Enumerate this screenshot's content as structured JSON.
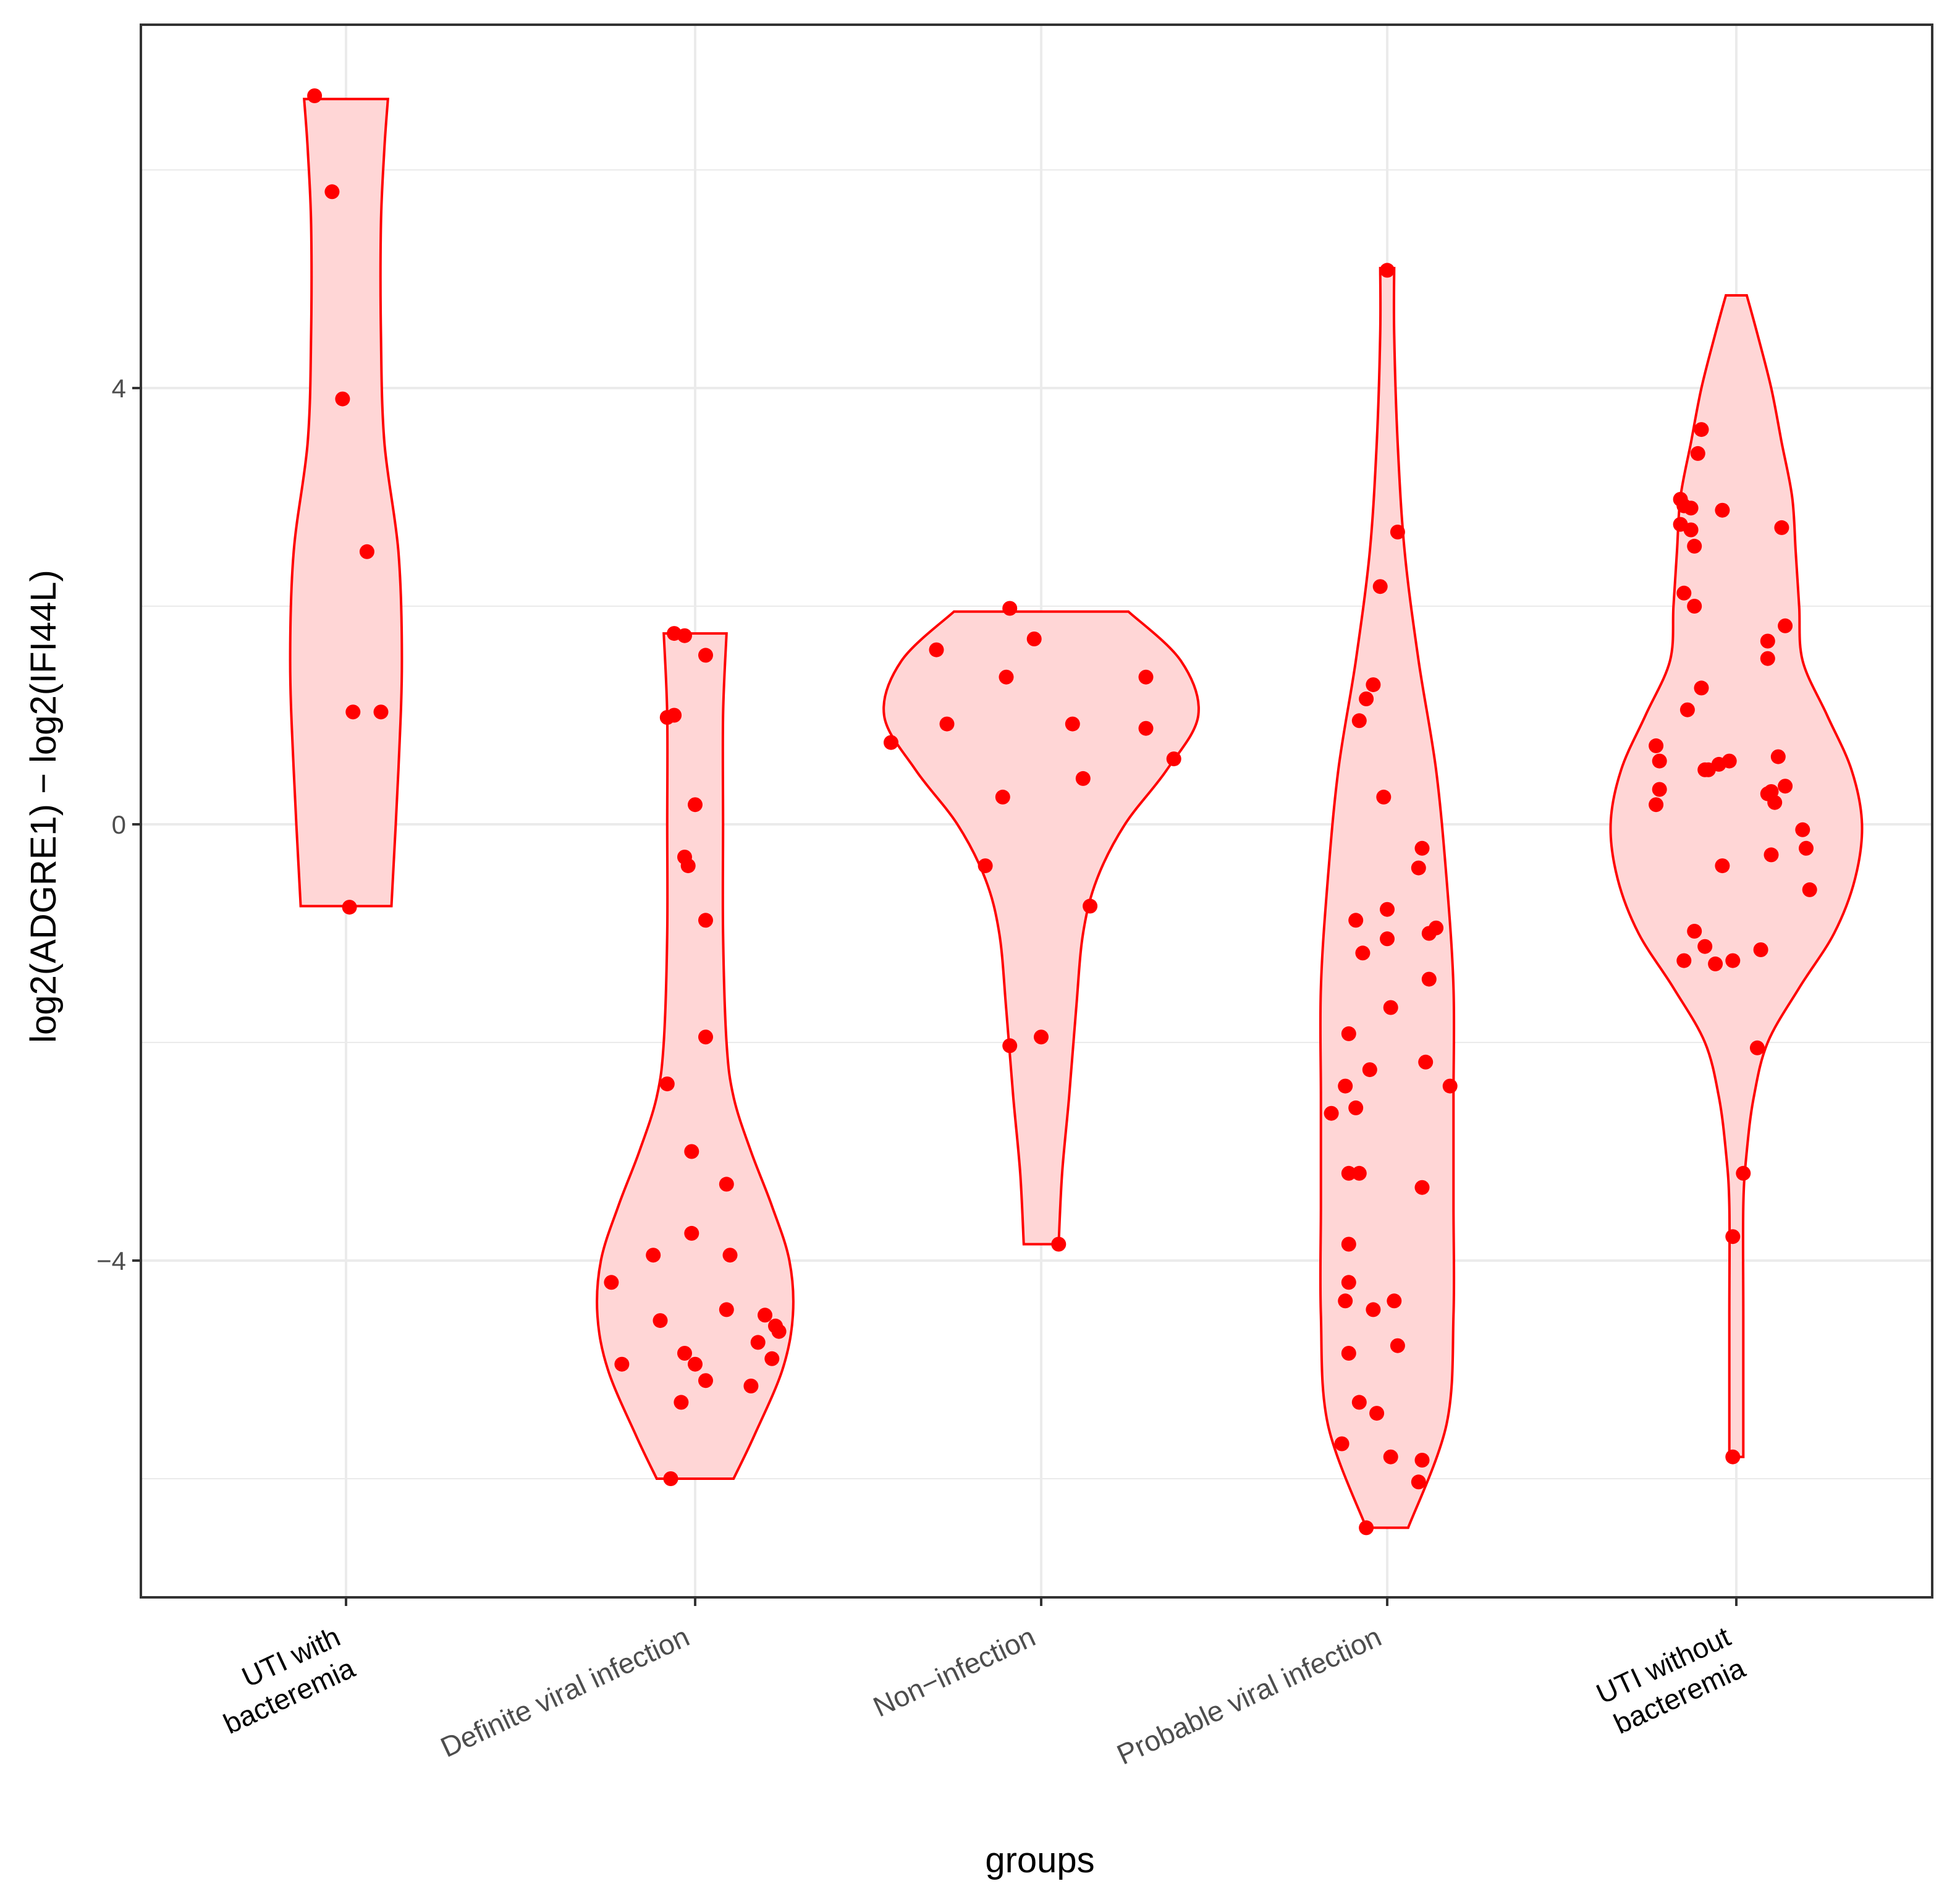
{
  "chart_data": {
    "type": "violin",
    "title": "",
    "xlabel": "groups",
    "ylabel": "log2(ADGRE1) − log2(IFI44L)",
    "ylim": [
      -7.1,
      7.3
    ],
    "yticks": [
      -4,
      0,
      4
    ],
    "ytick_labels": [
      "−4",
      "0",
      "4"
    ],
    "grid": true,
    "colors": {
      "fill": "#ffd6d6",
      "stroke": "#ff0000",
      "point": "#ff0000",
      "grid": "#ebebeb",
      "panel_border": "#333333"
    },
    "categories": [
      {
        "label_lines": [
          "UTI with",
          "bacteremia"
        ],
        "color": "#000000"
      },
      {
        "label_lines": [
          "Definite viral infection"
        ],
        "color": "#4d4d4d"
      },
      {
        "label_lines": [
          "Non−infection"
        ],
        "color": "#4d4d4d"
      },
      {
        "label_lines": [
          "Probable viral infection"
        ],
        "color": "#4d4d4d"
      },
      {
        "label_lines": [
          "UTI without",
          "bacteremia"
        ],
        "color": "#000000"
      }
    ],
    "groups": [
      {
        "violin": {
          "y": [
            -0.75,
            0.5,
            1.5,
            2.5,
            3.5,
            4.5,
            5.5,
            6.2,
            6.65
          ],
          "half_width": [
            0.13,
            0.15,
            0.16,
            0.15,
            0.11,
            0.1,
            0.1,
            0.11,
            0.12
          ]
        },
        "points": [
          [
            -0.09,
            6.68
          ],
          [
            -0.04,
            5.8
          ],
          [
            -0.01,
            3.9
          ],
          [
            0.06,
            2.5
          ],
          [
            0.02,
            1.03
          ],
          [
            0.1,
            1.03
          ],
          [
            0.01,
            -0.76
          ]
        ]
      },
      {
        "violin": {
          "y": [
            -6.0,
            -5.6,
            -5.0,
            -4.5,
            -4.0,
            -3.5,
            -3.0,
            -2.5,
            -2.0,
            -1.0,
            0.0,
            1.0,
            1.75
          ],
          "half_width": [
            0.11,
            0.17,
            0.25,
            0.28,
            0.27,
            0.22,
            0.16,
            0.11,
            0.09,
            0.08,
            0.08,
            0.08,
            0.09
          ]
        },
        "points": [
          [
            -0.07,
            -6.0
          ],
          [
            -0.06,
            1.75
          ],
          [
            -0.03,
            1.73
          ],
          [
            0.03,
            1.55
          ],
          [
            -0.08,
            0.98
          ],
          [
            -0.06,
            1.0
          ],
          [
            0.0,
            0.18
          ],
          [
            -0.03,
            -0.3
          ],
          [
            -0.02,
            -0.38
          ],
          [
            0.03,
            -0.88
          ],
          [
            0.03,
            -1.95
          ],
          [
            -0.08,
            -2.38
          ],
          [
            -0.01,
            -3.0
          ],
          [
            -0.01,
            -3.75
          ],
          [
            0.09,
            -3.3
          ],
          [
            -0.12,
            -3.95
          ],
          [
            0.1,
            -3.95
          ],
          [
            -0.24,
            -4.2
          ],
          [
            -0.1,
            -4.55
          ],
          [
            0.09,
            -4.45
          ],
          [
            0.2,
            -4.5
          ],
          [
            0.23,
            -4.6
          ],
          [
            -0.21,
            -4.95
          ],
          [
            -0.03,
            -4.85
          ],
          [
            0.0,
            -4.95
          ],
          [
            0.03,
            -5.1
          ],
          [
            0.16,
            -5.15
          ],
          [
            0.22,
            -4.9
          ],
          [
            -0.04,
            -5.3
          ],
          [
            0.18,
            -4.75
          ],
          [
            0.24,
            -4.65
          ]
        ]
      },
      {
        "violin": {
          "y": [
            -3.85,
            -3.2,
            -2.5,
            -1.7,
            -1.0,
            -0.5,
            0.0,
            0.5,
            1.0,
            1.5,
            1.95
          ],
          "half_width": [
            0.05,
            0.06,
            0.08,
            0.1,
            0.12,
            0.16,
            0.24,
            0.36,
            0.45,
            0.4,
            0.25
          ]
        },
        "points": [
          [
            -0.09,
            1.98
          ],
          [
            -0.02,
            1.7
          ],
          [
            -0.3,
            1.6
          ],
          [
            -0.1,
            1.35
          ],
          [
            0.3,
            1.35
          ],
          [
            -0.27,
            0.92
          ],
          [
            0.09,
            0.92
          ],
          [
            0.3,
            0.88
          ],
          [
            -0.43,
            0.75
          ],
          [
            0.38,
            0.6
          ],
          [
            -0.11,
            0.25
          ],
          [
            0.12,
            0.42
          ],
          [
            -0.16,
            -0.38
          ],
          [
            0.14,
            -0.75
          ],
          [
            -0.09,
            -2.03
          ],
          [
            0.0,
            -1.95
          ],
          [
            0.05,
            -3.85
          ]
        ]
      },
      {
        "violin": {
          "y": [
            -6.45,
            -5.5,
            -4.5,
            -3.5,
            -2.5,
            -1.5,
            -0.5,
            0.5,
            1.5,
            2.5,
            3.5,
            4.5,
            5.1
          ],
          "half_width": [
            0.06,
            0.17,
            0.19,
            0.19,
            0.19,
            0.19,
            0.17,
            0.14,
            0.09,
            0.05,
            0.03,
            0.02,
            0.02
          ]
        },
        "points": [
          [
            0.0,
            5.08
          ],
          [
            0.03,
            2.68
          ],
          [
            -0.02,
            2.18
          ],
          [
            -0.04,
            1.28
          ],
          [
            -0.06,
            1.15
          ],
          [
            -0.08,
            0.95
          ],
          [
            -0.01,
            0.25
          ],
          [
            0.1,
            -0.22
          ],
          [
            0.09,
            -0.4
          ],
          [
            0.12,
            -1.0
          ],
          [
            0.14,
            -0.95
          ],
          [
            0.12,
            -1.42
          ],
          [
            0.0,
            -0.78
          ],
          [
            -0.09,
            -0.88
          ],
          [
            0.0,
            -1.05
          ],
          [
            -0.07,
            -1.18
          ],
          [
            0.01,
            -1.68
          ],
          [
            -0.11,
            -1.92
          ],
          [
            0.11,
            -2.18
          ],
          [
            -0.05,
            -2.25
          ],
          [
            -0.12,
            -2.4
          ],
          [
            0.18,
            -2.4
          ],
          [
            -0.09,
            -2.6
          ],
          [
            -0.16,
            -2.65
          ],
          [
            -0.11,
            -3.2
          ],
          [
            -0.08,
            -3.2
          ],
          [
            0.1,
            -3.33
          ],
          [
            -0.11,
            -3.85
          ],
          [
            -0.11,
            -4.2
          ],
          [
            -0.12,
            -4.37
          ],
          [
            0.02,
            -4.37
          ],
          [
            -0.04,
            -4.45
          ],
          [
            -0.11,
            -4.85
          ],
          [
            0.03,
            -4.78
          ],
          [
            -0.08,
            -5.3
          ],
          [
            -0.03,
            -5.4
          ],
          [
            -0.13,
            -5.68
          ],
          [
            0.01,
            -5.8
          ],
          [
            0.1,
            -5.83
          ],
          [
            0.09,
            -6.03
          ],
          [
            -0.06,
            -6.45
          ]
        ]
      },
      {
        "violin": {
          "y": [
            -5.8,
            -4.5,
            -3.5,
            -3.0,
            -2.5,
            -2.0,
            -1.5,
            -1.0,
            -0.5,
            0.0,
            0.5,
            1.0,
            1.5,
            2.0,
            2.5,
            3.0,
            3.5,
            4.0,
            4.5,
            4.85
          ],
          "half_width": [
            0.02,
            0.02,
            0.02,
            0.03,
            0.05,
            0.09,
            0.18,
            0.28,
            0.34,
            0.36,
            0.33,
            0.26,
            0.19,
            0.18,
            0.17,
            0.16,
            0.13,
            0.1,
            0.06,
            0.03
          ]
        },
        "points": [
          [
            -0.1,
            3.62
          ],
          [
            -0.11,
            3.4
          ],
          [
            -0.16,
            2.98
          ],
          [
            -0.15,
            2.92
          ],
          [
            -0.13,
            2.9
          ],
          [
            -0.16,
            2.75
          ],
          [
            -0.13,
            2.7
          ],
          [
            -0.12,
            2.55
          ],
          [
            -0.15,
            2.12
          ],
          [
            -0.12,
            2.0
          ],
          [
            -0.23,
            0.18
          ],
          [
            -0.23,
            0.72
          ],
          [
            -0.22,
            0.58
          ],
          [
            -0.14,
            1.05
          ],
          [
            -0.22,
            0.32
          ],
          [
            -0.1,
            1.25
          ],
          [
            -0.08,
            0.5
          ],
          [
            -0.05,
            0.55
          ],
          [
            -0.02,
            0.58
          ],
          [
            -0.09,
            0.5
          ],
          [
            -0.04,
            2.88
          ],
          [
            0.13,
            2.72
          ],
          [
            0.14,
            1.82
          ],
          [
            0.09,
            1.68
          ],
          [
            0.09,
            1.52
          ],
          [
            0.12,
            0.62
          ],
          [
            0.1,
            0.3
          ],
          [
            0.14,
            0.35
          ],
          [
            0.11,
            0.2
          ],
          [
            0.09,
            0.28
          ],
          [
            0.19,
            -0.05
          ],
          [
            0.2,
            -0.22
          ],
          [
            0.21,
            -0.6
          ],
          [
            0.1,
            -0.28
          ],
          [
            -0.04,
            -0.38
          ],
          [
            -0.12,
            -0.98
          ],
          [
            -0.09,
            -1.12
          ],
          [
            -0.06,
            -1.28
          ],
          [
            -0.15,
            -1.25
          ],
          [
            0.07,
            -1.15
          ],
          [
            0.06,
            -2.05
          ],
          [
            0.02,
            -3.2
          ],
          [
            -0.01,
            -3.78
          ],
          [
            -0.01,
            -5.8
          ],
          [
            -0.01,
            -1.25
          ]
        ]
      }
    ]
  }
}
